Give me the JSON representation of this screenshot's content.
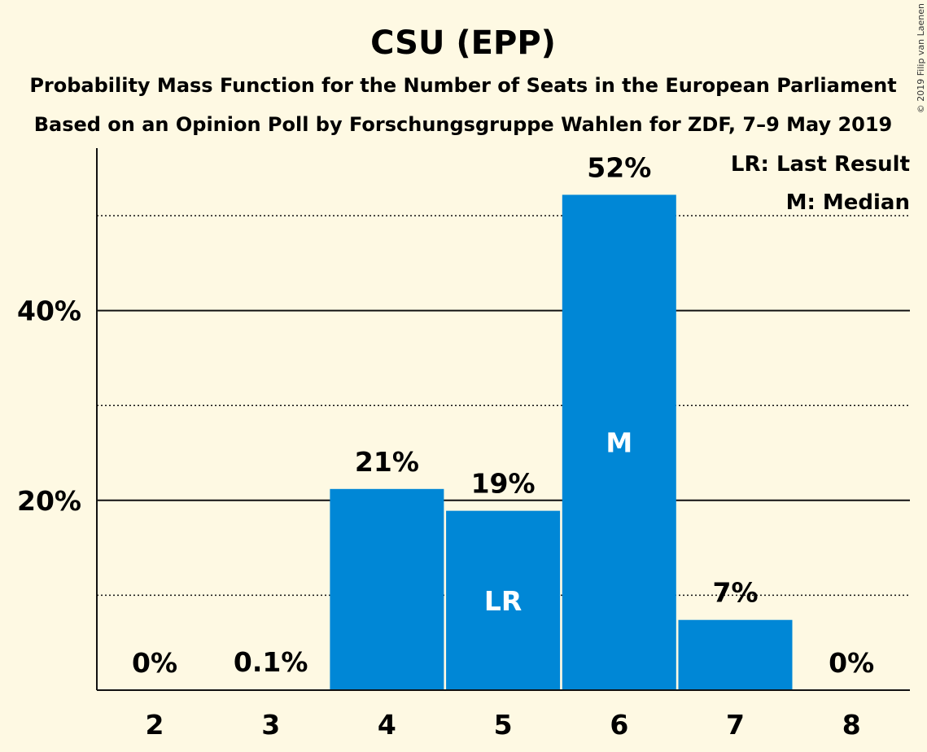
{
  "chart_data": {
    "type": "bar",
    "title": "CSU (EPP)",
    "subtitle_lines": [
      "Probability Mass Function for the Number of Seats in the European Parliament",
      "Based on an Opinion Poll by Forschungsgruppe Wahlen for ZDF, 7–9 May 2019"
    ],
    "categories": [
      "2",
      "3",
      "4",
      "5",
      "6",
      "7",
      "8"
    ],
    "values": [
      0,
      0.1,
      21.2,
      18.9,
      52.2,
      7.4,
      0
    ],
    "data_labels": [
      "0%",
      "0.1%",
      "21%",
      "19%",
      "52%",
      "7%",
      "0%"
    ],
    "bar_annotations": [
      {
        "category": "5",
        "text": "LR"
      },
      {
        "category": "6",
        "text": "M"
      }
    ],
    "ylim": [
      0,
      57
    ],
    "y_ticks": [
      {
        "value": 20,
        "label": "20%"
      },
      {
        "value": 40,
        "label": "40%"
      }
    ],
    "minor_gridlines": [
      10,
      30,
      50
    ],
    "legend": [
      "LR: Last Result",
      "M: Median"
    ],
    "legend_position": "top-right",
    "bar_color": "#0087d6",
    "background_color": "#fef9e3",
    "copyright": "© 2019 Filip van Laenen"
  }
}
